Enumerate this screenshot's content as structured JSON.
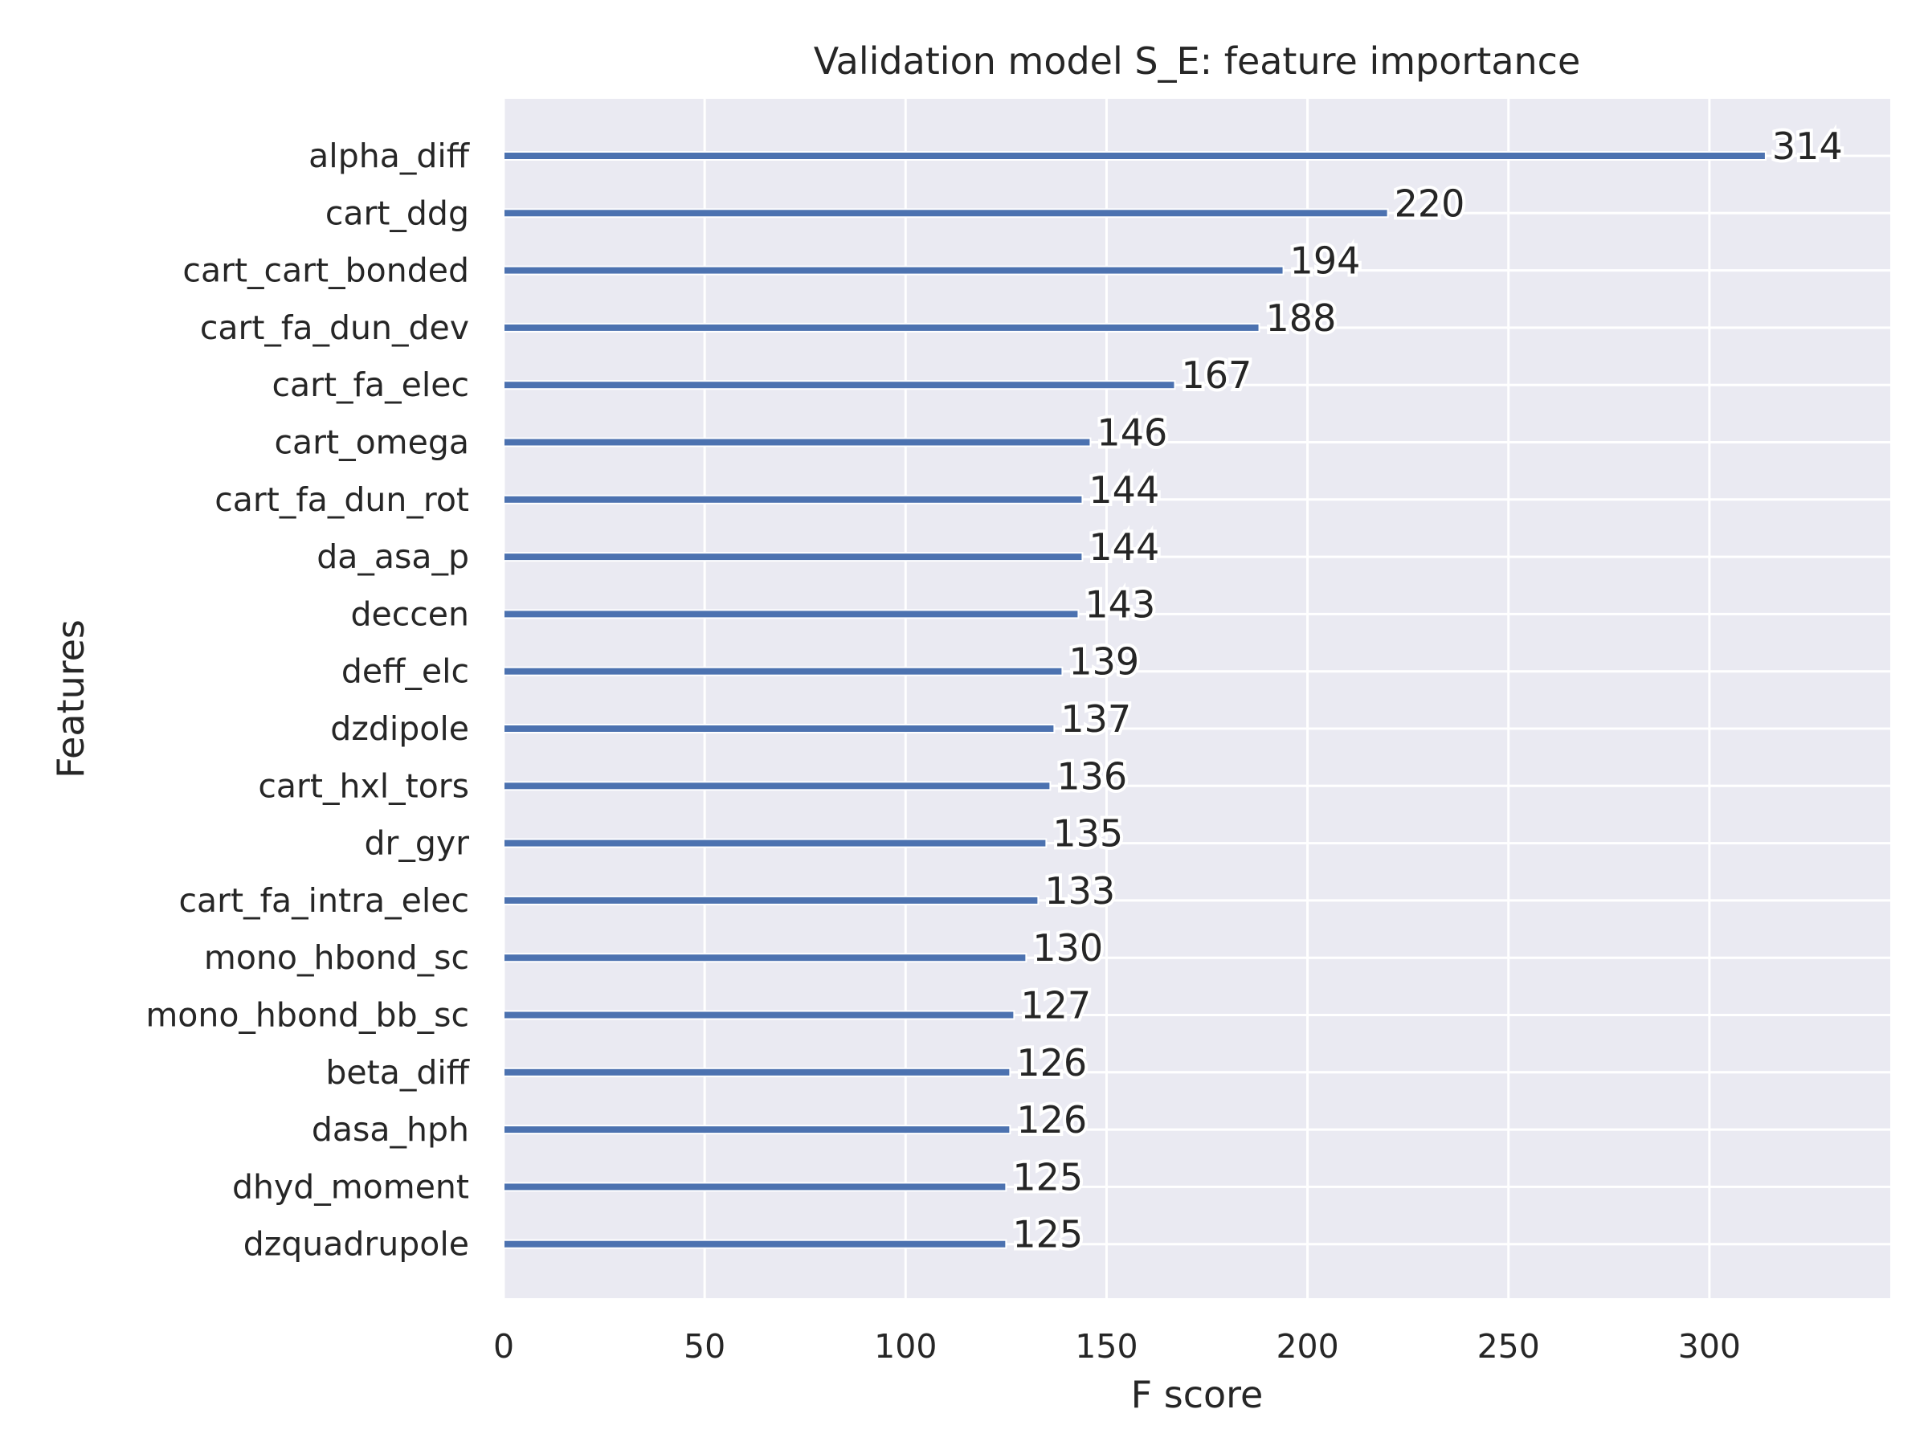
{
  "chart_data": {
    "type": "bar",
    "orientation": "horizontal",
    "title": "Validation model S_E: feature importance",
    "xlabel": "F score",
    "ylabel": "Features",
    "xlim": [
      0,
      345
    ],
    "xticks": [
      0,
      50,
      100,
      150,
      200,
      250,
      300
    ],
    "grid": true,
    "categories": [
      "alpha_diff",
      "cart_ddg",
      "cart_cart_bonded",
      "cart_fa_dun_dev",
      "cart_fa_elec",
      "cart_omega",
      "cart_fa_dun_rot",
      "da_asa_p",
      "deccen",
      "deff_elc",
      "dzdipole",
      "cart_hxl_tors",
      "dr_gyr",
      "cart_fa_intra_elec",
      "mono_hbond_sc",
      "mono_hbond_bb_sc",
      "beta_diff",
      "dasa_hph",
      "dhyd_moment",
      "dzquadrupole"
    ],
    "values": [
      314,
      220,
      194,
      188,
      167,
      146,
      144,
      144,
      143,
      139,
      137,
      136,
      135,
      133,
      130,
      127,
      126,
      126,
      125,
      125
    ],
    "colors": {
      "bar": "#4c72b0",
      "plot_bg": "#eaeaf2",
      "grid": "#ffffff",
      "text": "#262626"
    }
  }
}
